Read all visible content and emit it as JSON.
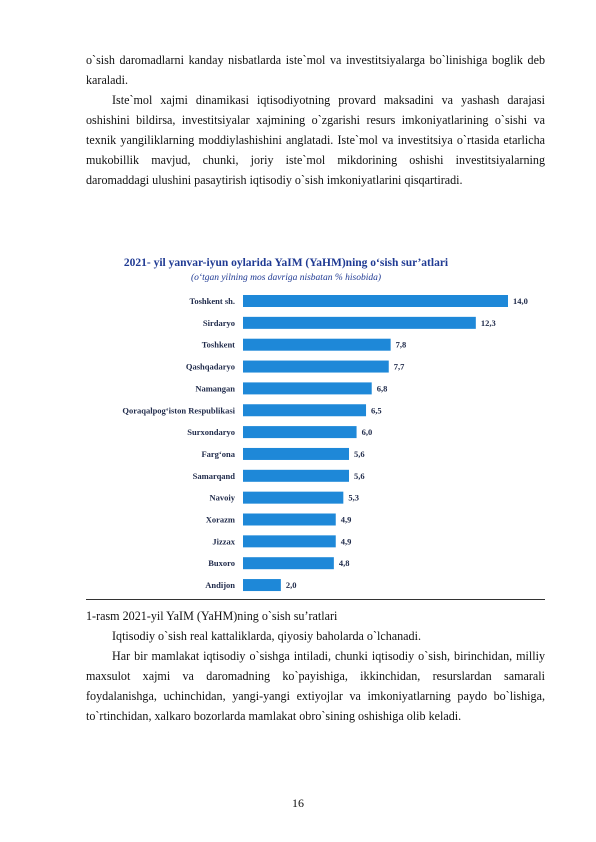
{
  "paragraphs_top": [
    "o`sish daromadlarni kanday nisbatlarda iste`mol va investitsiyalarga bo`linishiga boglik deb karaladi.",
    "Iste`mol xajmi dinamikasi iqtisodiyotning provard maksadini va yashash darajasi oshishini bildirsa, investitsiyalar xajmining o`zgarishi resurs imkoniyatlarining o`sishi va texnik yangiliklarning moddiylashishini anglatadi. Iste`mol va investitsiya o`rtasida etarlicha mukobillik mavjud, chunki, joriy iste`mol mikdorining oshishi investitsiyalarning daromaddagi ulushini pasaytirish iqtisodiy o`sish imkoniyatlarini qisqartiradi."
  ],
  "chart_data": {
    "type": "bar",
    "orientation": "horizontal",
    "title": "2021- yil yanvar-iyun oylarida YaIM (YaHM)ning o‘sish sur’atlari",
    "subtitle": "(o‘tgan yilning mos davriga nisbatan % hisobida)",
    "categories": [
      "Toshkent sh.",
      "Sirdaryo",
      "Toshkent",
      "Qashqadaryo",
      "Namangan",
      "Qoraqalpog‘iston Respublikasi",
      "Surxondaryo",
      "Farg‘ona",
      "Samarqand",
      "Navoiy",
      "Xorazm",
      "Jizzax",
      "Buxoro",
      "Andijon"
    ],
    "values": [
      14.0,
      12.3,
      7.8,
      7.7,
      6.8,
      6.5,
      6.0,
      5.6,
      5.6,
      5.3,
      4.9,
      4.9,
      4.8,
      2.0
    ],
    "value_labels": [
      "14,0",
      "12,3",
      "7,8",
      "7,7",
      "6,8",
      "6,5",
      "6,0",
      "5,6",
      "5,6",
      "5,3",
      "4,9",
      "4,9",
      "4,8",
      "2,0"
    ],
    "xlim": [
      0,
      14.0
    ],
    "bar_color": "#1e88d8",
    "grid": false
  },
  "caption": "1-rasm  2021-yil YaIM (YaHM)ning o`sish su’ratlari",
  "paragraphs_bottom": [
    "Iqtisodiy o`sish real kattaliklarda, qiyosiy baholarda o`lchanadi.",
    "Har bir mamlakat iqtisodiy o`sishga intiladi, chunki iqtisodiy o`sish, birinchidan, milliy maxsulot xajmi va daromadning ko`payishiga, ikkinchidan, resurslardan samarali foydalanishga, uchinchidan, yangi-yangi extiyojlar va imkoniyatlarning paydo bo`lishiga, to`rtinchidan, xalkaro bozorlarda mamlakat obro`sining oshishiga olib keladi."
  ],
  "page_number": "16"
}
